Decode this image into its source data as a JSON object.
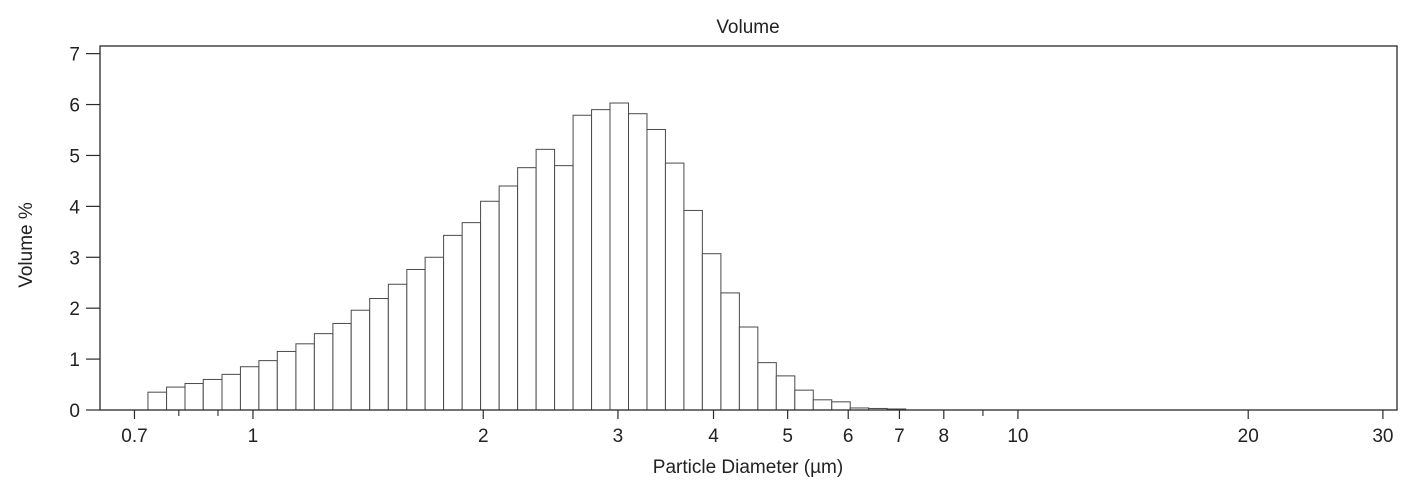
{
  "chart_data": {
    "type": "bar",
    "title": "Volume",
    "xlabel": "Particle Diameter (µm)",
    "ylabel": "Volume %",
    "x_scale": "log",
    "xlim": [
      0.631,
      31.3
    ],
    "ylim": [
      0,
      7.15
    ],
    "grid": false,
    "legend": "none",
    "x_ticks": {
      "values": [
        0.7,
        1,
        2,
        3,
        4,
        5,
        6,
        7,
        8,
        10,
        20,
        30
      ],
      "labels": [
        "0.7",
        "1",
        "2",
        "3",
        "4",
        "5",
        "6",
        "7",
        "8",
        "10",
        "20",
        "30"
      ],
      "minor_values": [
        0.8,
        0.9,
        9
      ]
    },
    "y_ticks": {
      "values": [
        0,
        1,
        2,
        3,
        4,
        5,
        6,
        7
      ],
      "labels": [
        "0",
        "1",
        "2",
        "3",
        "4",
        "5",
        "6",
        "7"
      ]
    },
    "bin_edges": [
      0.729,
      0.771,
      0.815,
      0.861,
      0.911,
      0.963,
      1.018,
      1.076,
      1.138,
      1.203,
      1.272,
      1.344,
      1.421,
      1.503,
      1.589,
      1.679,
      1.775,
      1.877,
      1.984,
      2.098,
      2.218,
      2.345,
      2.479,
      2.621,
      2.771,
      2.929,
      3.097,
      3.274,
      3.461,
      3.659,
      3.868,
      4.09,
      4.324,
      4.571,
      4.832,
      5.109,
      5.401,
      5.71,
      6.036,
      6.382,
      6.747,
      7.133
    ],
    "values": [
      0.35,
      0.45,
      0.52,
      0.6,
      0.7,
      0.85,
      0.97,
      1.15,
      1.3,
      1.5,
      1.7,
      1.96,
      2.19,
      2.47,
      2.76,
      3.0,
      3.43,
      3.68,
      4.1,
      4.4,
      4.76,
      5.12,
      4.8,
      5.79,
      5.9,
      6.03,
      5.82,
      5.51,
      4.85,
      3.92,
      3.07,
      2.3,
      1.63,
      0.93,
      0.67,
      0.39,
      0.2,
      0.16,
      0.04,
      0.03,
      0.02
    ],
    "colors": {
      "background": "#ffffff",
      "bar_fill": "#ffffff",
      "bar_stroke": "#4a4a4a",
      "axis": "#2a2a2a"
    }
  }
}
